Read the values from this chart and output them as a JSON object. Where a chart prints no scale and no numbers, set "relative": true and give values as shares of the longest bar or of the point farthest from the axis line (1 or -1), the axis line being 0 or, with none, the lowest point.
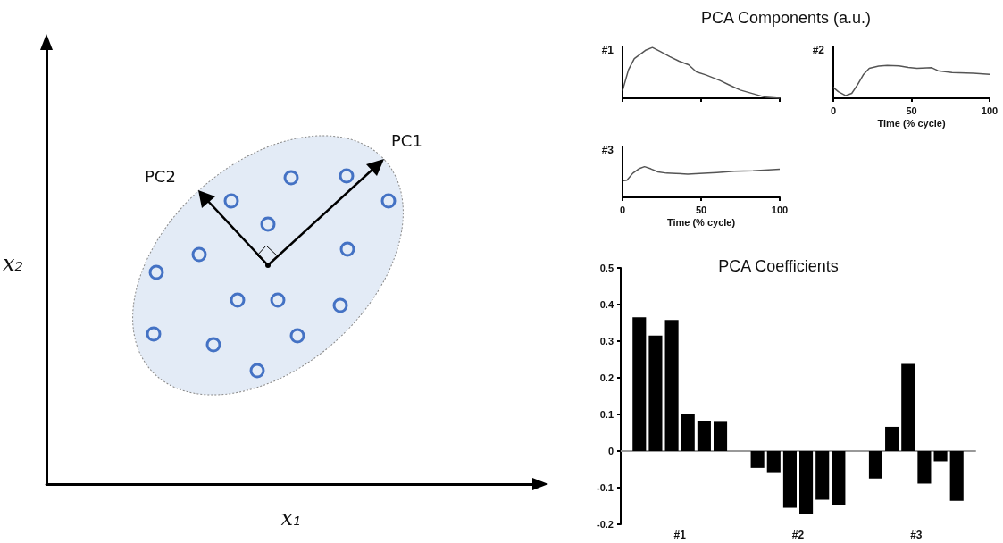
{
  "chart_data": [
    {
      "type": "other",
      "xlabel": "x₁",
      "ylabel": "x₂",
      "annotations": [
        "PC1",
        "PC2"
      ]
    },
    {
      "type": "line",
      "relative": true,
      "title": "PCA Components (a.u.)",
      "ylabel": "#1",
      "color": "#555555",
      "xlim": [
        0,
        100
      ],
      "xticks": [
        0,
        50,
        100
      ],
      "tick_labels": false,
      "x": [
        0,
        3.8,
        7.5,
        11,
        15,
        19,
        24,
        30,
        36,
        42,
        47,
        53,
        62,
        68,
        75,
        83,
        91,
        100
      ],
      "values": [
        0.15,
        0.56,
        0.78,
        0.86,
        0.95,
        1.0,
        0.92,
        0.82,
        0.73,
        0.66,
        0.52,
        0.46,
        0.35,
        0.26,
        0.16,
        0.09,
        0.02,
        0
      ]
    },
    {
      "type": "line",
      "relative": true,
      "ylabel": "#2",
      "xlabel": "Time (% cycle)",
      "color": "#555555",
      "xlim": [
        0,
        100
      ],
      "xticks": [
        0,
        50,
        100
      ],
      "tick_labels": "x",
      "x": [
        0,
        3.2,
        8,
        11.8,
        15.6,
        19.4,
        23,
        29,
        34.5,
        42,
        48,
        53.5,
        63,
        67,
        76,
        89.6,
        100
      ],
      "values": [
        0.33,
        0.2,
        0.08,
        0.15,
        0.42,
        0.73,
        0.91,
        0.98,
        1.0,
        0.99,
        0.94,
        0.91,
        0.93,
        0.84,
        0.78,
        0.76,
        0.73
      ]
    },
    {
      "type": "line",
      "relative": true,
      "ylabel": "#3",
      "xlabel": "Time (% cycle)",
      "color": "#555555",
      "xlim": [
        0,
        100
      ],
      "xticks": [
        0,
        50,
        100
      ],
      "tick_labels": "x",
      "x": [
        0,
        2.8,
        6.6,
        10.4,
        14,
        18,
        22.6,
        28,
        34,
        41.5,
        49,
        60,
        71,
        83,
        100
      ],
      "values": [
        0.54,
        0.56,
        0.79,
        0.93,
        1.0,
        0.93,
        0.83,
        0.79,
        0.78,
        0.76,
        0.78,
        0.81,
        0.85,
        0.87,
        0.92
      ]
    },
    {
      "type": "bar",
      "title": "PCA Coefficients",
      "categories": [
        "#1",
        "#2",
        "#3"
      ],
      "ylim": [
        -0.2,
        0.5
      ],
      "yticks": [
        -0.2,
        -0.1,
        0,
        0.1,
        0.2,
        0.3,
        0.4,
        0.5
      ],
      "series": [
        {
          "color": "#000000",
          "values": [
            0.365,
            -0.046,
            -0.075
          ]
        },
        {
          "color": "#000000",
          "values": [
            0.315,
            -0.06,
            0.066
          ]
        },
        {
          "color": "#000000",
          "values": [
            0.358,
            -0.155,
            0.238
          ]
        },
        {
          "color": "#000000",
          "values": [
            0.101,
            -0.172,
            -0.089
          ]
        },
        {
          "color": "#000000",
          "values": [
            0.083,
            -0.133,
            -0.028
          ]
        },
        {
          "color": "#000000",
          "values": [
            0.082,
            -0.147,
            -0.136
          ]
        }
      ]
    }
  ]
}
